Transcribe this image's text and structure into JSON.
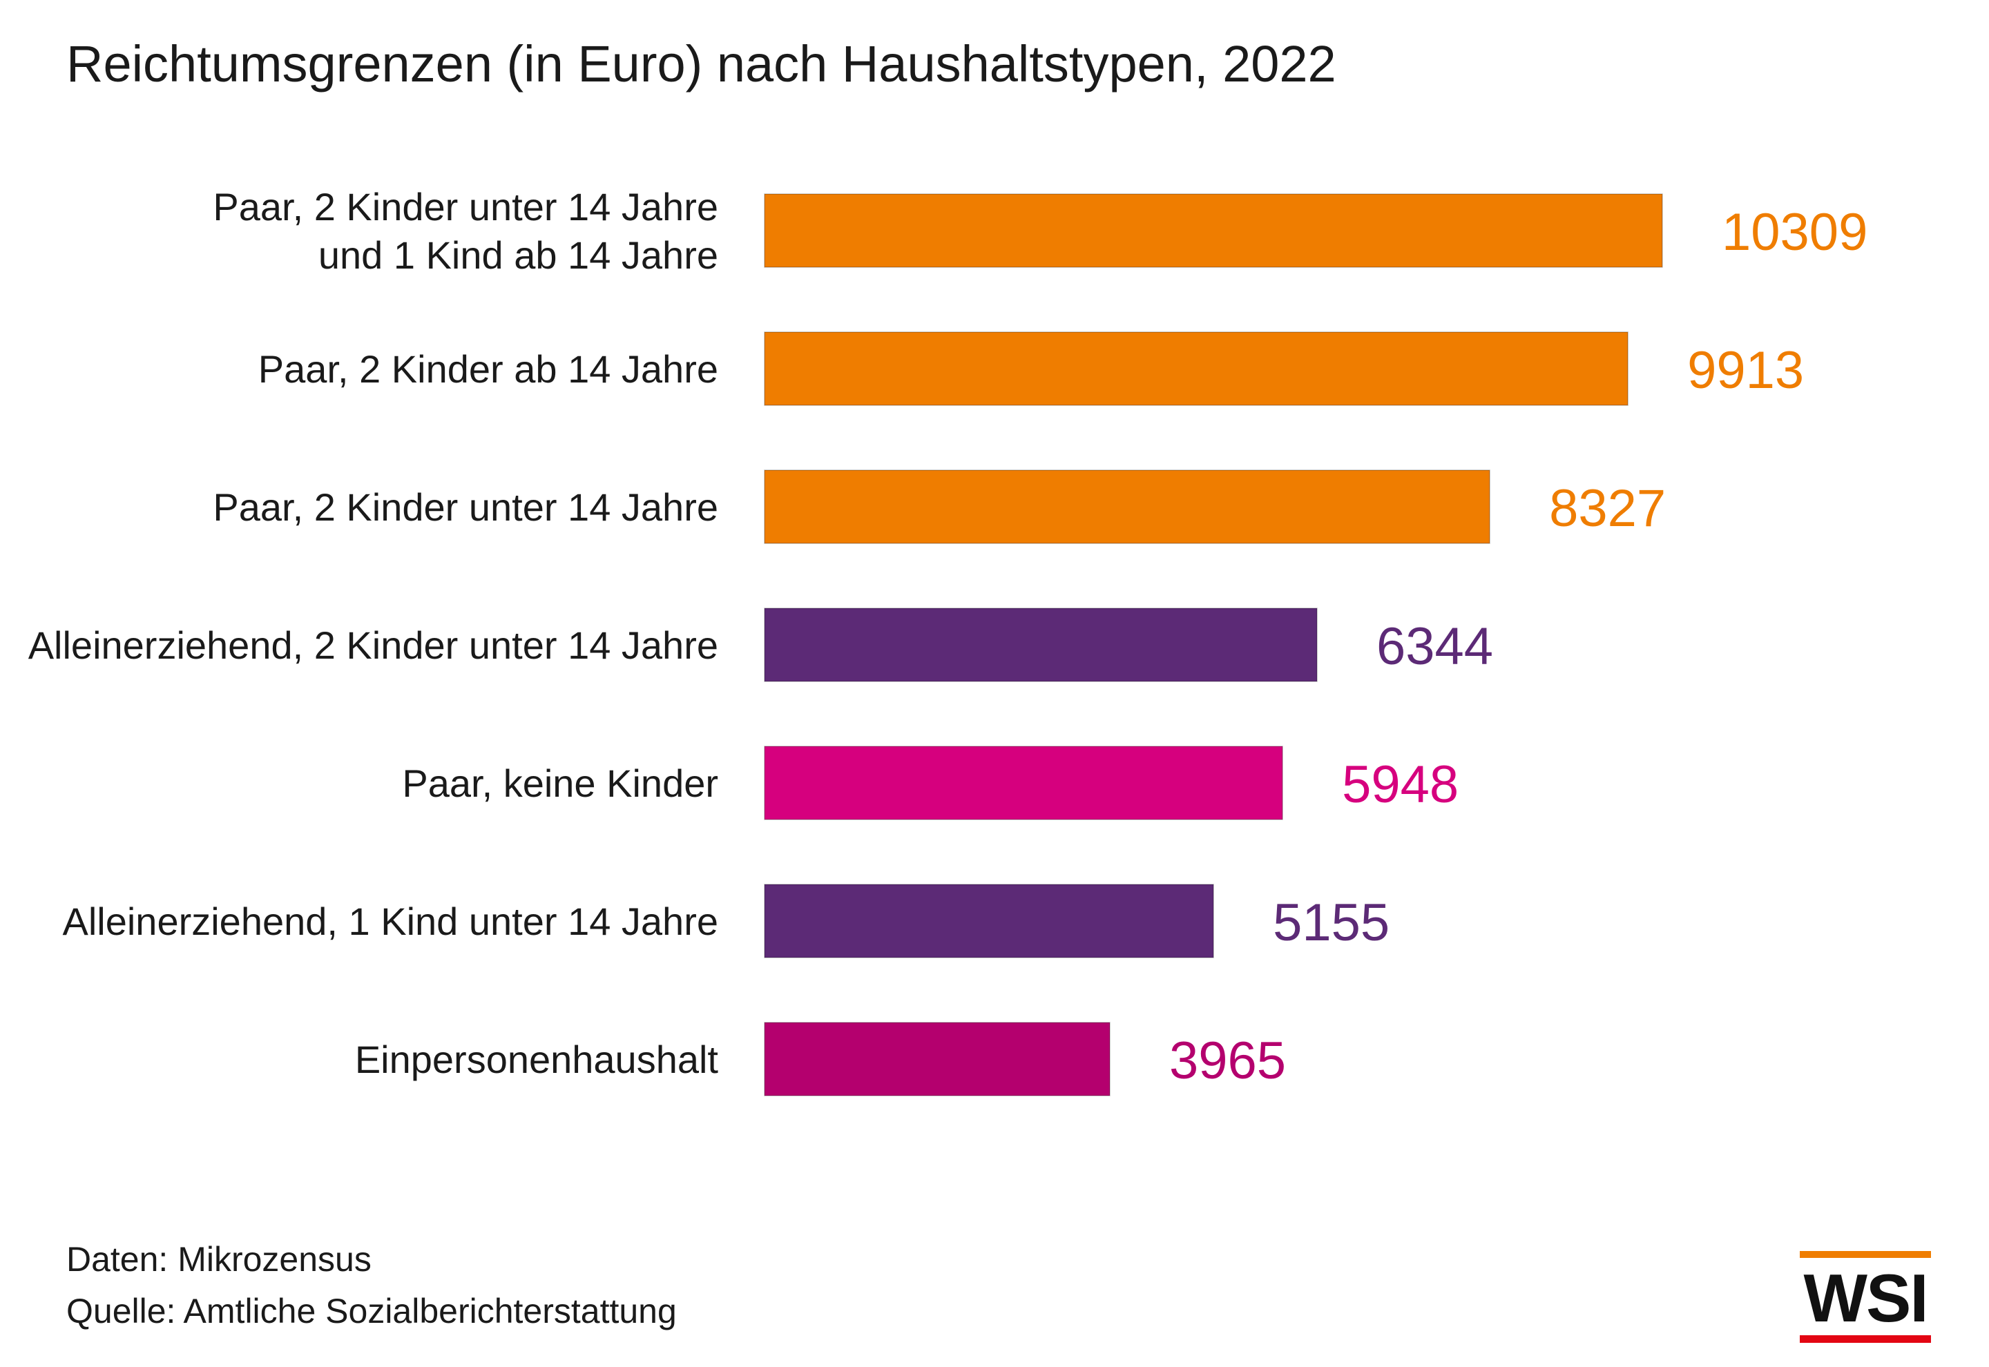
{
  "title": "Reichtumsgrenzen (in Euro) nach Haushaltstypen, 2022",
  "chart_data": {
    "type": "bar",
    "orientation": "horizontal",
    "title": "Reichtumsgrenzen (in Euro) nach Haushaltstypen, 2022",
    "xlabel": "",
    "ylabel": "",
    "grid": false,
    "xlim": [
      0,
      10309
    ],
    "categories": [
      [
        "Paar, 2 Kinder unter 14 Jahre",
        "und 1 Kind ab 14 Jahre"
      ],
      [
        "Paar, 2 Kinder ab 14 Jahre"
      ],
      [
        "Paar, 2 Kinder unter 14 Jahre"
      ],
      [
        "Alleinerziehend, 2 Kinder unter 14 Jahre"
      ],
      [
        "Paar, keine Kinder"
      ],
      [
        "Alleinerziehend, 1 Kind unter 14 Jahre"
      ],
      [
        "Einpersonenhaushalt"
      ]
    ],
    "values": [
      10309,
      9913,
      8327,
      6344,
      5948,
      5155,
      3965
    ],
    "bar_colors": [
      "#ef7d00",
      "#ef7d00",
      "#ef7d00",
      "#5c2a76",
      "#d6007e",
      "#5c2a76",
      "#b4006e"
    ],
    "label_colors": [
      "#ef7d00",
      "#ef7d00",
      "#ef7d00",
      "#5c2a76",
      "#d6007e",
      "#5c2a76",
      "#b4006e"
    ],
    "data_labels": [
      "10309",
      "9913",
      "8327",
      "6344",
      "5948",
      "5155",
      "3965"
    ]
  },
  "footer": {
    "data_note": "Daten: Mikrozensus",
    "source_note": "Quelle: Amtliche Sozialberichterstattung"
  },
  "logo": {
    "text": "WSI",
    "colors": {
      "top_bar": "#ef7d00",
      "bottom_bar": "#e30613"
    }
  }
}
